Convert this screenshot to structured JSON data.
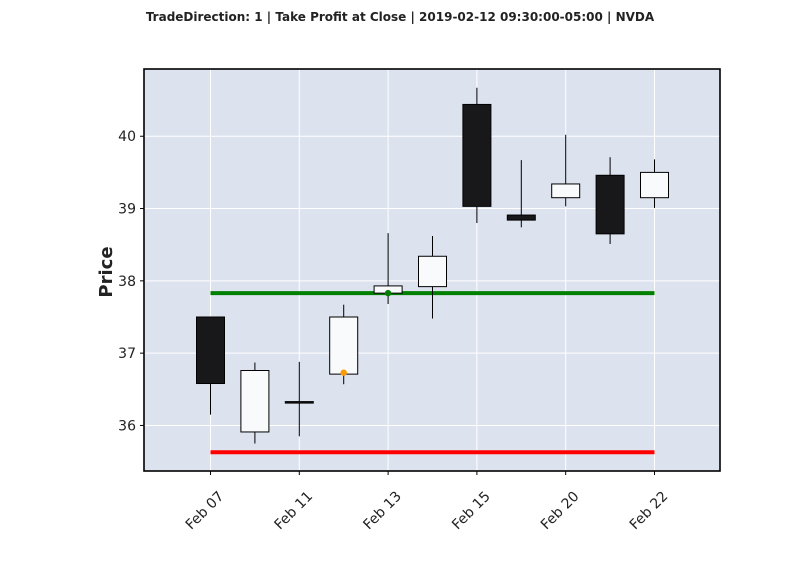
{
  "chart_data": {
    "type": "candlestick",
    "title": "TradeDirection: 1 | Take Profit at Close | 2019-02-12 09:30:00-05:00 | NVDA",
    "ylabel": "Price",
    "xlabel": "",
    "ylim": [
      35.37,
      40.93
    ],
    "grid": true,
    "tick_labels": [
      "Feb 07",
      "Feb 11",
      "Feb 13",
      "Feb 15",
      "Feb 20",
      "Feb 22"
    ],
    "tick_indices": [
      0,
      2,
      4,
      6,
      8,
      10
    ],
    "yticks": [
      36,
      37,
      38,
      39,
      40
    ],
    "candles": [
      {
        "open": 37.5,
        "high": 37.5,
        "low": 36.15,
        "close": 36.58
      },
      {
        "open": 35.91,
        "high": 36.87,
        "low": 35.75,
        "close": 36.76
      },
      {
        "open": 36.33,
        "high": 36.88,
        "low": 35.85,
        "close": 36.32
      },
      {
        "open": 36.71,
        "high": 37.67,
        "low": 36.57,
        "close": 37.5
      },
      {
        "open": 37.83,
        "high": 38.66,
        "low": 37.68,
        "close": 37.93
      },
      {
        "open": 37.92,
        "high": 38.62,
        "low": 37.48,
        "close": 38.34
      },
      {
        "open": 40.44,
        "high": 40.67,
        "low": 38.8,
        "close": 39.03
      },
      {
        "open": 38.91,
        "high": 39.67,
        "low": 38.74,
        "close": 38.84
      },
      {
        "open": 39.15,
        "high": 40.02,
        "low": 39.03,
        "close": 39.34
      },
      {
        "open": 39.46,
        "high": 39.71,
        "low": 38.51,
        "close": 38.65
      },
      {
        "open": 39.15,
        "high": 39.68,
        "low": 39.01,
        "close": 39.5
      }
    ],
    "take_profit_line": {
      "value": 37.83,
      "from_index": 0,
      "to_index": 10
    },
    "stop_loss_line": {
      "value": 35.63,
      "from_index": 0,
      "to_index": 10
    },
    "markers": [
      {
        "index": 3,
        "value": 36.73
      },
      {
        "index": 4,
        "value": 37.83
      }
    ],
    "colors": {
      "background": "#dde2ef",
      "grid": "#ffffff",
      "up_fill": "#f9fafc",
      "down_fill": "#18181a",
      "edge": "#000000",
      "take_profit": "#008000",
      "stop_loss": "#ff0000",
      "entry_marker": "#ff9900",
      "exit_marker": "#008000"
    }
  }
}
